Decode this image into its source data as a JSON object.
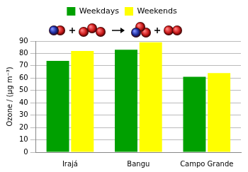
{
  "chart_data": {
    "type": "bar",
    "categories": [
      "Irajá",
      "Bangu",
      "Campo Grande"
    ],
    "series": [
      {
        "name": "Weekdays",
        "color": "#00a000",
        "values": [
          74,
          83,
          61
        ]
      },
      {
        "name": "Weekends",
        "color": "#ffff00",
        "values": [
          82,
          89,
          64
        ]
      }
    ],
    "ylabel": "Ozone / (µg m⁻³)",
    "ylim": [
      0,
      90
    ],
    "yticks": [
      0,
      10,
      20,
      30,
      40,
      50,
      60,
      70,
      80,
      90
    ],
    "grid": true,
    "legend": "top"
  }
}
